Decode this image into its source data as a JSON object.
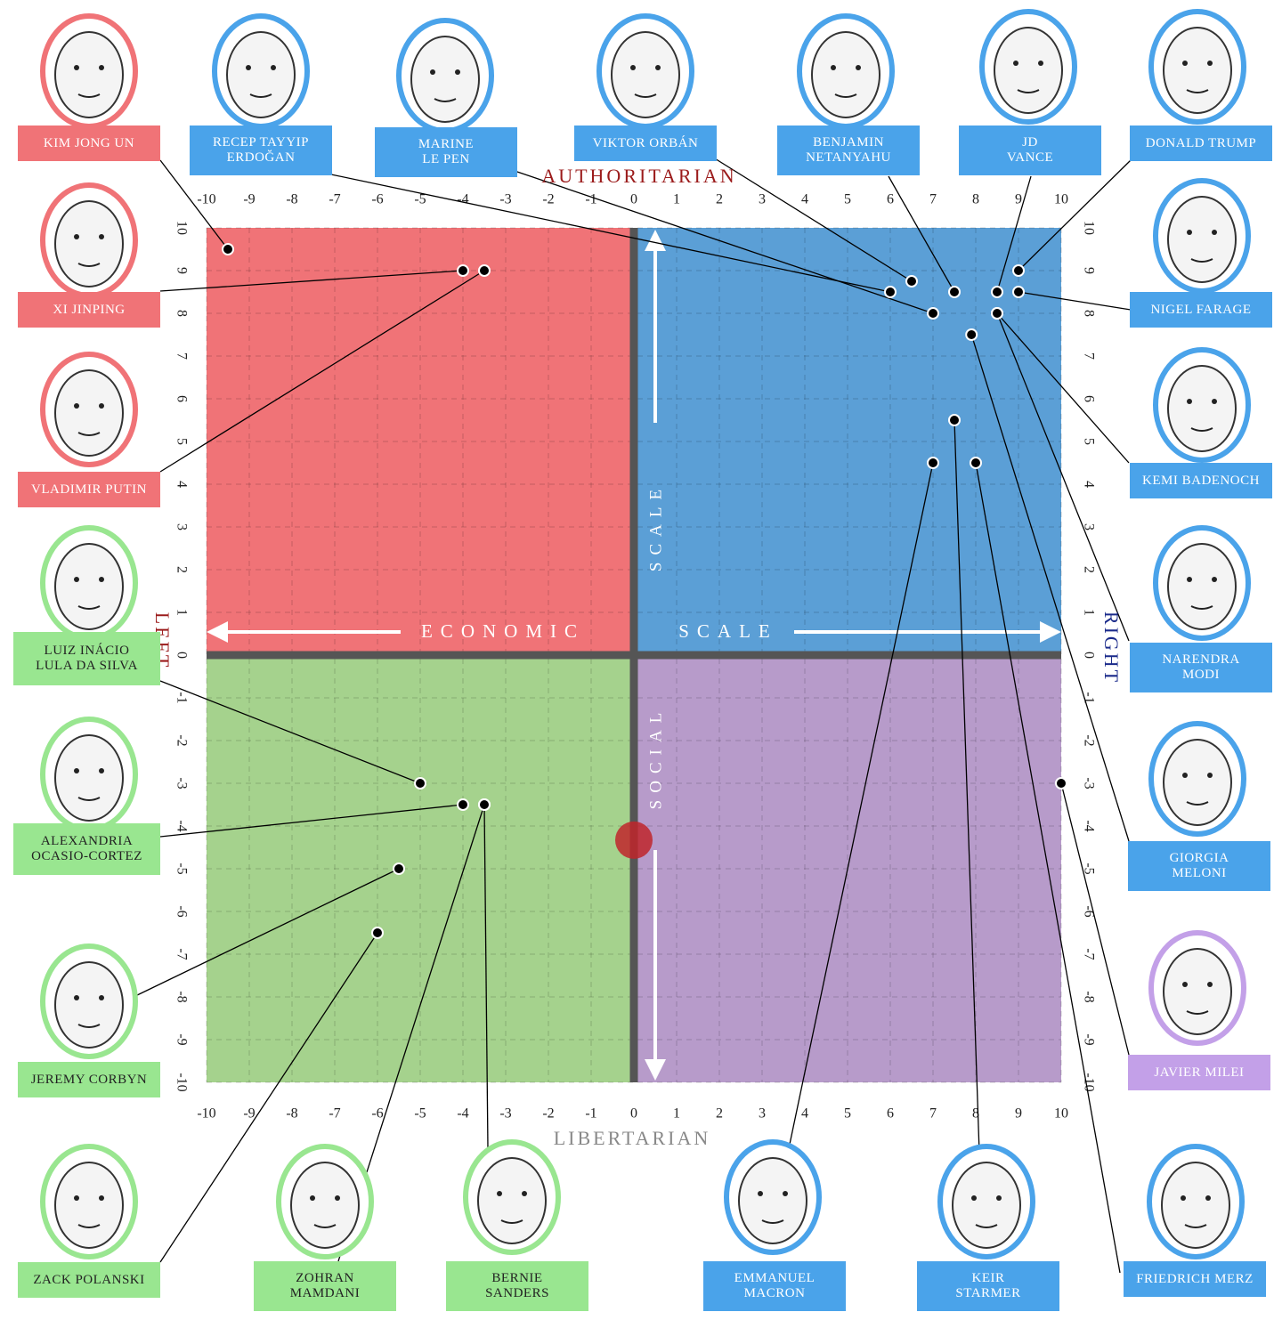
{
  "chart_data": {
    "type": "scatter",
    "y_top_label": "AUTHORITARIAN",
    "y_bottom_label": "LIBERTARIAN",
    "x_left_label": "LEFT",
    "x_right_label": "RIGHT",
    "axis_words": [
      "ECONOMIC",
      "SCALE",
      "SOCIAL",
      "SCALE"
    ],
    "xlim": [
      -10,
      10
    ],
    "ylim": [
      -10,
      10
    ],
    "xticks": [
      -10,
      -9,
      -8,
      -7,
      -6,
      -5,
      -4,
      -3,
      -2,
      -1,
      0,
      1,
      2,
      3,
      4,
      5,
      6,
      7,
      8,
      9,
      10
    ],
    "yticks": [
      -10,
      -9,
      -8,
      -7,
      -6,
      -5,
      -4,
      -3,
      -2,
      -1,
      0,
      1,
      2,
      3,
      4,
      5,
      6,
      7,
      8,
      9,
      10
    ],
    "quadrant_colors": {
      "top_left": "#f07377",
      "top_right": "#5b9fd6",
      "bottom_left": "#a5d28d",
      "bottom_right": "#b79bca"
    },
    "points": [
      {
        "name": "KIM JONG UN",
        "color": "#f07377",
        "x": -9.5,
        "y": 9.5
      },
      {
        "name": "RECEP TAYYIP\nERDOĞAN",
        "color": "#4aa3ea",
        "x": 6,
        "y": 8.5
      },
      {
        "name": "MARINE\nLE PEN",
        "color": "#4aa3ea",
        "x": 7,
        "y": 8
      },
      {
        "name": "VIKTOR ORBÁN",
        "color": "#4aa3ea",
        "x": 6.5,
        "y": 8.75
      },
      {
        "name": "BENJAMIN\nNETANYAHU",
        "color": "#4aa3ea",
        "x": 7.5,
        "y": 8.5
      },
      {
        "name": "JD\nVANCE",
        "color": "#4aa3ea",
        "x": 8.5,
        "y": 8.5
      },
      {
        "name": "DONALD TRUMP",
        "color": "#4aa3ea",
        "x": 9,
        "y": 9
      },
      {
        "name": "XI JINPING",
        "color": "#f07377",
        "x": -4,
        "y": 9
      },
      {
        "name": "NIGEL FARAGE",
        "color": "#4aa3ea",
        "x": 9,
        "y": 8.5
      },
      {
        "name": "VLADIMIR PUTIN",
        "color": "#f07377",
        "x": -3.5,
        "y": 9
      },
      {
        "name": "KEMI BADENOCH",
        "color": "#4aa3ea",
        "x": 8.5,
        "y": 8
      },
      {
        "name": "LUIZ INÁCIO\nLULA DA SILVA",
        "color": "#99e690",
        "x": -5,
        "y": -3
      },
      {
        "name": "NARENDRA\nMODI",
        "color": "#4aa3ea",
        "x": 8.5,
        "y": 8
      },
      {
        "name": "ALEXANDRIA\nOCASIO-CORTEZ",
        "color": "#99e690",
        "x": -4,
        "y": -3.5
      },
      {
        "name": "GIORGIA\nMELONI",
        "color": "#4aa3ea",
        "x": 7.9,
        "y": 7.5
      },
      {
        "name": "JEREMY CORBYN",
        "color": "#99e690",
        "x": -5.5,
        "y": -5
      },
      {
        "name": "JAVIER MILEI",
        "color": "#c3a0e8",
        "x": 10,
        "y": -3
      },
      {
        "name": "ZACK POLANSKI",
        "color": "#99e690",
        "x": -6,
        "y": -6.5
      },
      {
        "name": "ZOHRAN\nMAMDANI",
        "color": "#99e690",
        "x": -3.5,
        "y": -3.5
      },
      {
        "name": "BERNIE\nSANDERS",
        "color": "#99e690",
        "x": -3.5,
        "y": -3.5
      },
      {
        "name": "EMMANUEL\nMACRON",
        "color": "#4aa3ea",
        "x": 7,
        "y": 4.5
      },
      {
        "name": "KEIR\nSTARMER",
        "color": "#4aa3ea",
        "x": 7.5,
        "y": 5.5
      },
      {
        "name": "FRIEDRICH MERZ",
        "color": "#4aa3ea",
        "x": 8,
        "y": 4.5
      }
    ],
    "marker": {
      "x": 0,
      "y": -4.33,
      "color": "#c0262c"
    }
  }
}
